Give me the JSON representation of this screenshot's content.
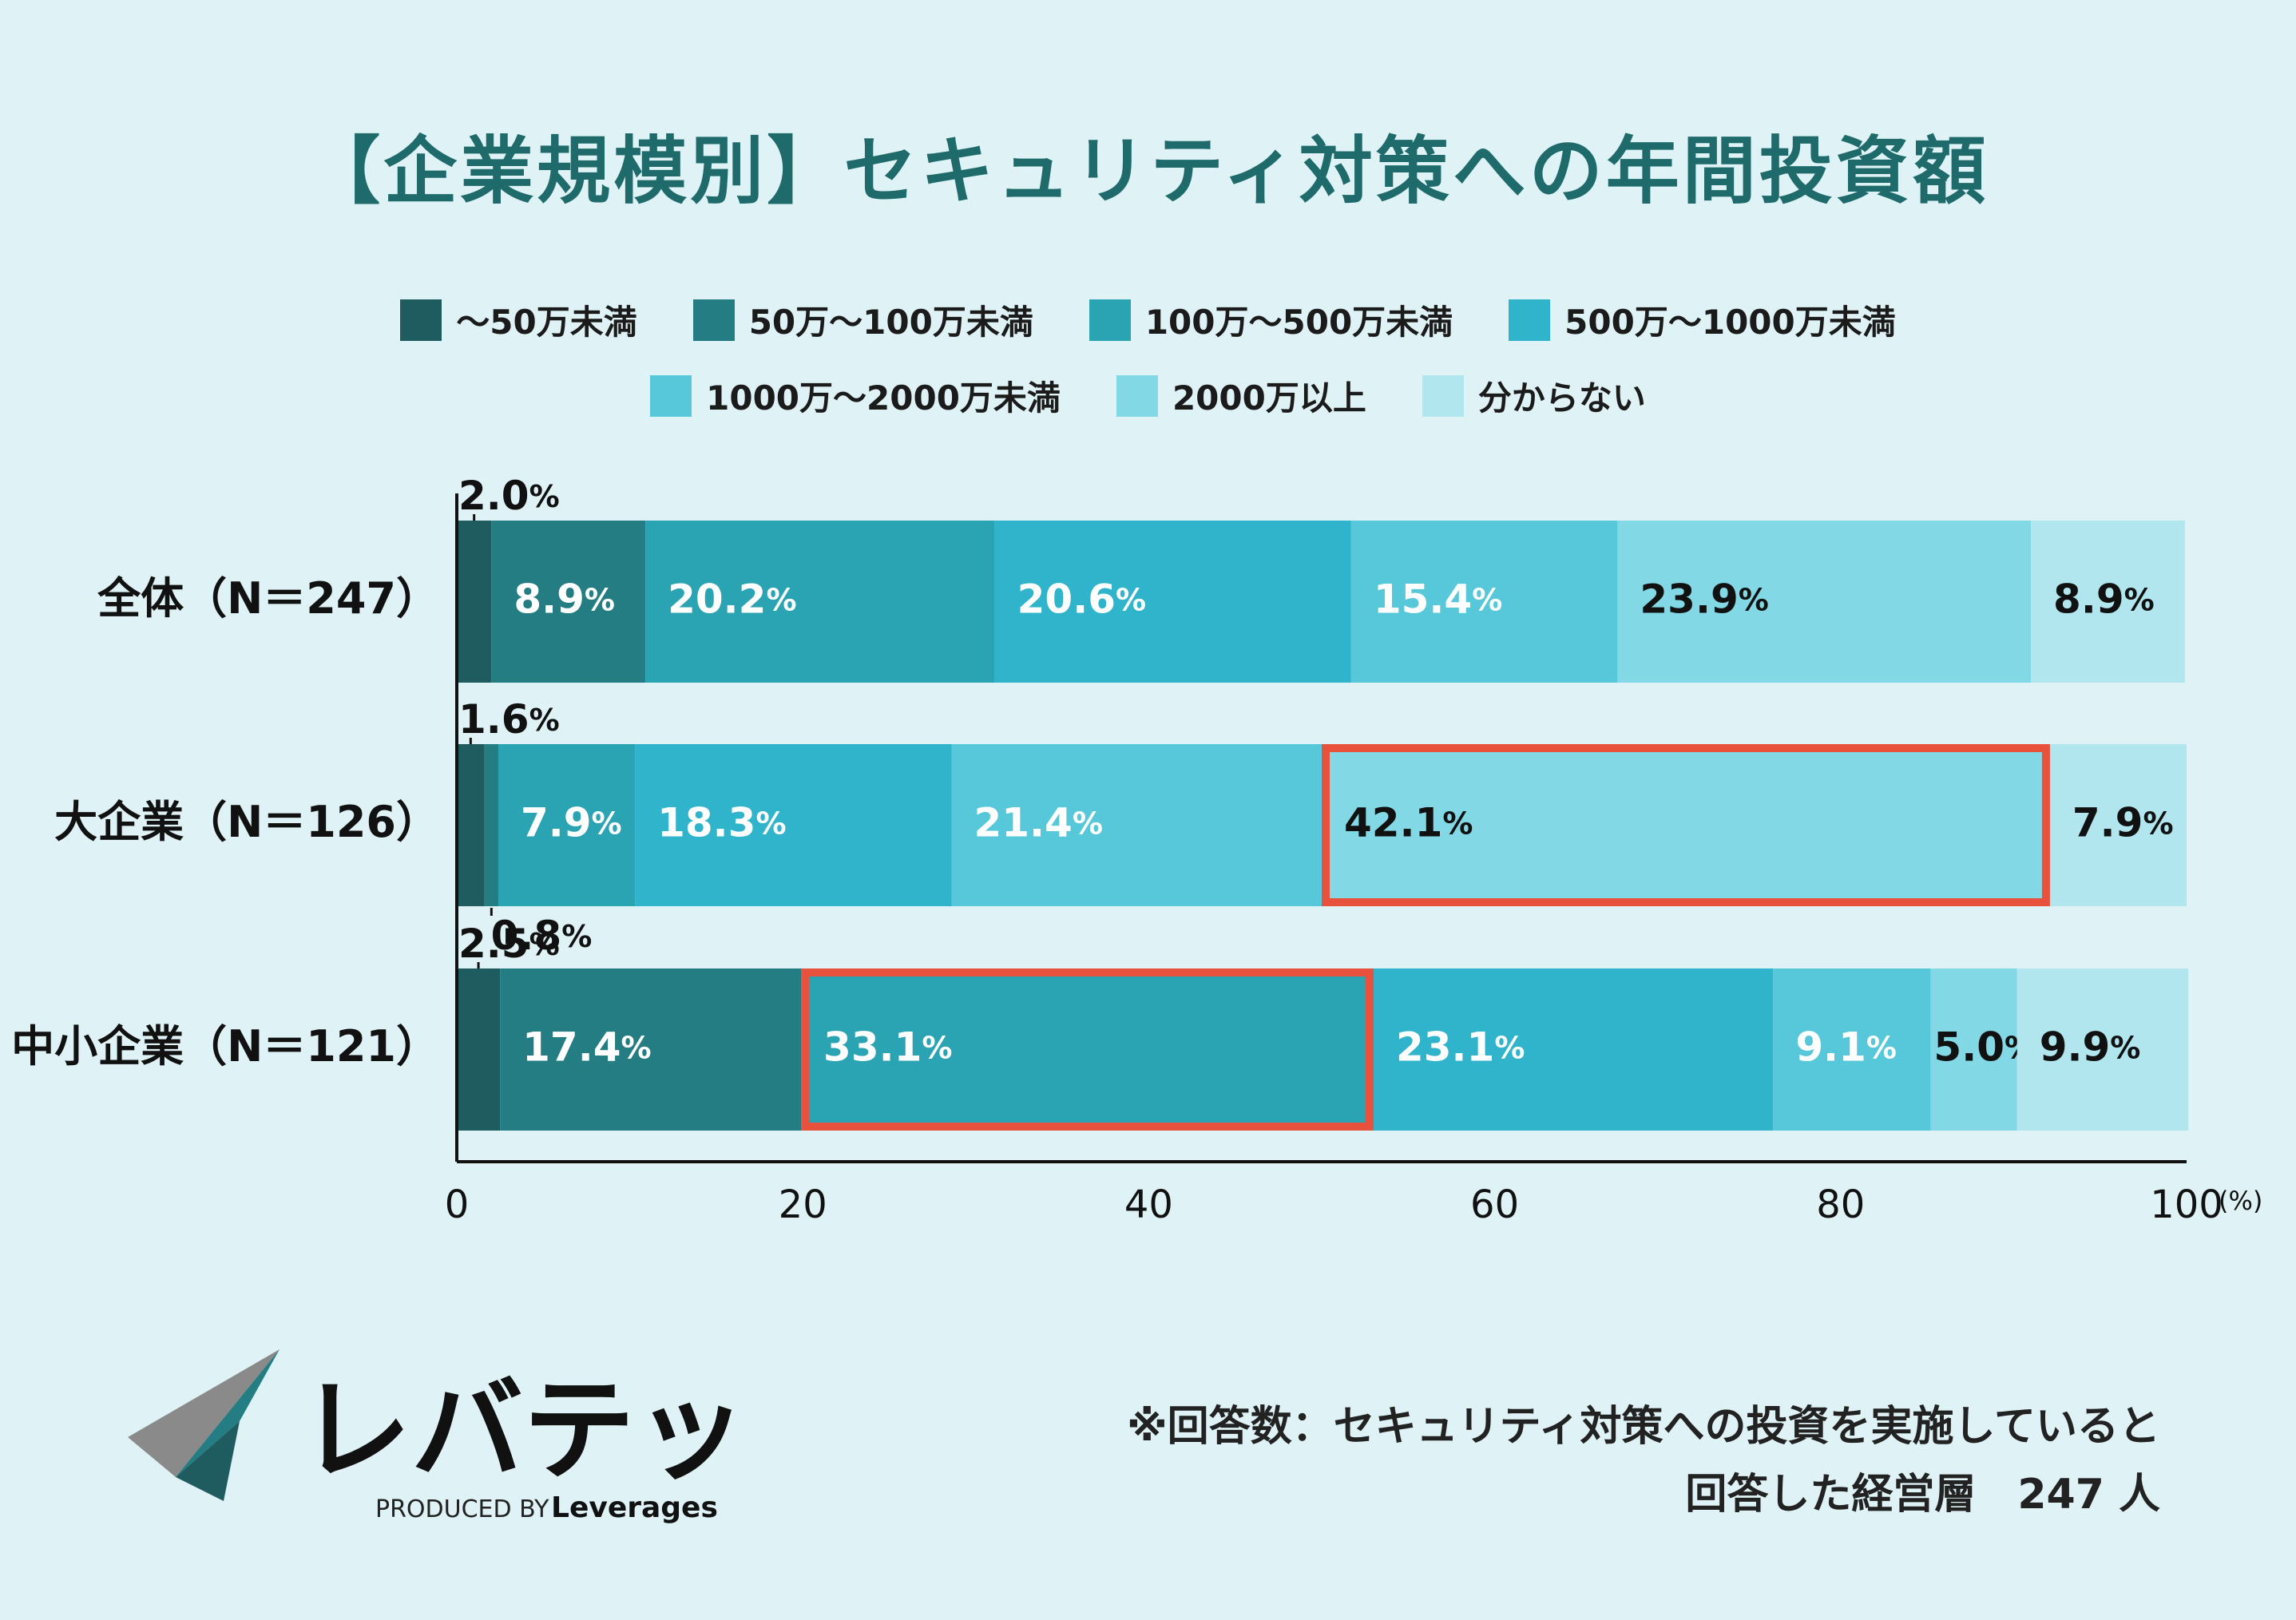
{
  "title": "【企業規模別】セキュリティ対策への年間投資額",
  "colors": {
    "background": "#dff3f6",
    "title": "#1f6b6b",
    "highlight": "#e8513b",
    "series": [
      "#1f5c5f",
      "#247d82",
      "#2aa3b3",
      "#2fb4cc",
      "#57c8d9",
      "#82d8e4",
      "#b2e6ee"
    ]
  },
  "chart_data": {
    "type": "bar",
    "orientation": "horizontal",
    "stacked": true,
    "title": "【企業規模別】セキュリティ対策への年間投資額",
    "xlabel": "",
    "ylabel": "",
    "xlim": [
      0,
      100
    ],
    "x_ticks": [
      "0",
      "20",
      "40",
      "60",
      "80",
      "100"
    ],
    "x_unit": "(%)",
    "value_suffix": "%",
    "legend_position": "top",
    "categories": [
      "全体（N＝247）",
      "大企業（N＝126）",
      "中小企業（N＝121）"
    ],
    "series": [
      {
        "name": "〜50万未満",
        "values": [
          2.0,
          1.6,
          2.5
        ]
      },
      {
        "name": "50万〜100万未満",
        "values": [
          8.9,
          0.8,
          17.4
        ]
      },
      {
        "name": "100万〜500万未満",
        "values": [
          20.2,
          7.9,
          33.1
        ]
      },
      {
        "name": "500万〜1000万未満",
        "values": [
          20.6,
          18.3,
          23.1
        ]
      },
      {
        "name": "1000万〜2000万未満",
        "values": [
          15.4,
          21.4,
          9.1
        ]
      },
      {
        "name": "2000万以上",
        "values": [
          23.9,
          42.1,
          5.0
        ]
      },
      {
        "name": "分からない",
        "values": [
          8.9,
          7.9,
          9.9
        ]
      }
    ],
    "highlights": [
      {
        "row": 1,
        "series": 5
      },
      {
        "row": 2,
        "series": 2
      }
    ]
  },
  "legend_rows": [
    [
      "〜50万未満",
      "50万〜100万未満",
      "100万〜500万未満",
      "500万〜1000万未満"
    ],
    [
      "1000万〜2000万未満",
      "2000万以上",
      "分からない"
    ]
  ],
  "footnote": {
    "line1": "※回答数：セキュリティ対策への投資を実施していると",
    "line2": "回答した経営層　247 人"
  },
  "logo": {
    "brand": "レバテック",
    "produced_by": "PRODUCED BY",
    "company": "Leverages"
  }
}
